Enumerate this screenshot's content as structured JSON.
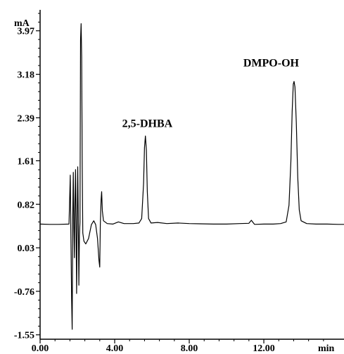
{
  "chart_data": {
    "type": "line",
    "y_unit": "mA",
    "x_unit": "min",
    "xlim": [
      0,
      16.3
    ],
    "ylim": [
      -1.63,
      4.35
    ],
    "x_ticks": [
      {
        "value": 0,
        "label": "0.00"
      },
      {
        "value": 4,
        "label": "4.00"
      },
      {
        "value": 8,
        "label": "8.00"
      },
      {
        "value": 12,
        "label": "12.00"
      }
    ],
    "y_ticks": [
      {
        "value": -1.55,
        "label": "-1.55"
      },
      {
        "value": -0.76,
        "label": "-0.76"
      },
      {
        "value": 0.03,
        "label": "0.03"
      },
      {
        "value": 0.82,
        "label": "0.82"
      },
      {
        "value": 1.61,
        "label": "1.61"
      },
      {
        "value": 2.39,
        "label": "2.39"
      },
      {
        "value": 3.18,
        "label": "3.18"
      },
      {
        "value": 3.97,
        "label": "3.97"
      }
    ],
    "annotations": [
      {
        "text": "2,5-DHBA",
        "x": 4.4,
        "y": 2.22
      },
      {
        "text": "DMPO-OH",
        "x": 10.9,
        "y": 3.32
      }
    ],
    "series": [
      {
        "color": "#000000",
        "points": [
          [
            0.0,
            0.46
          ],
          [
            0.5,
            0.455
          ],
          [
            1.0,
            0.455
          ],
          [
            1.55,
            0.46
          ],
          [
            1.62,
            1.35
          ],
          [
            1.66,
            0.0
          ],
          [
            1.69,
            -0.9
          ],
          [
            1.72,
            -1.45
          ],
          [
            1.75,
            0.6
          ],
          [
            1.78,
            1.4
          ],
          [
            1.81,
            0.4
          ],
          [
            1.84,
            -0.15
          ],
          [
            1.87,
            0.9
          ],
          [
            1.9,
            1.45
          ],
          [
            1.93,
            0.3
          ],
          [
            1.96,
            -0.8
          ],
          [
            1.99,
            0.5
          ],
          [
            2.02,
            1.5
          ],
          [
            2.05,
            0.6
          ],
          [
            2.08,
            -0.65
          ],
          [
            2.11,
            0.25
          ],
          [
            2.14,
            0.5
          ],
          [
            2.17,
            3.8
          ],
          [
            2.2,
            4.1
          ],
          [
            2.23,
            3.5
          ],
          [
            2.26,
            1.5
          ],
          [
            2.29,
            0.3
          ],
          [
            2.35,
            0.15
          ],
          [
            2.45,
            0.1
          ],
          [
            2.6,
            0.2
          ],
          [
            2.75,
            0.45
          ],
          [
            2.88,
            0.52
          ],
          [
            2.98,
            0.45
          ],
          [
            3.08,
            0.2
          ],
          [
            3.16,
            -0.2
          ],
          [
            3.2,
            -0.32
          ],
          [
            3.23,
            0.45
          ],
          [
            3.27,
            0.9
          ],
          [
            3.3,
            1.05
          ],
          [
            3.34,
            0.7
          ],
          [
            3.4,
            0.52
          ],
          [
            3.6,
            0.47
          ],
          [
            3.9,
            0.46
          ],
          [
            4.2,
            0.5
          ],
          [
            4.5,
            0.47
          ],
          [
            5.0,
            0.47
          ],
          [
            5.3,
            0.48
          ],
          [
            5.45,
            0.56
          ],
          [
            5.55,
            1.2
          ],
          [
            5.6,
            1.85
          ],
          [
            5.65,
            2.06
          ],
          [
            5.7,
            1.8
          ],
          [
            5.75,
            1.05
          ],
          [
            5.82,
            0.56
          ],
          [
            5.95,
            0.48
          ],
          [
            6.3,
            0.49
          ],
          [
            6.8,
            0.47
          ],
          [
            7.4,
            0.48
          ],
          [
            8.0,
            0.47
          ],
          [
            8.6,
            0.465
          ],
          [
            9.3,
            0.46
          ],
          [
            10.0,
            0.46
          ],
          [
            10.7,
            0.47
          ],
          [
            11.2,
            0.475
          ],
          [
            11.33,
            0.53
          ],
          [
            11.42,
            0.49
          ],
          [
            11.5,
            0.455
          ],
          [
            12.0,
            0.46
          ],
          [
            12.5,
            0.46
          ],
          [
            12.9,
            0.47
          ],
          [
            13.2,
            0.5
          ],
          [
            13.35,
            0.8
          ],
          [
            13.45,
            1.6
          ],
          [
            13.52,
            2.5
          ],
          [
            13.58,
            3.0
          ],
          [
            13.62,
            3.05
          ],
          [
            13.67,
            2.95
          ],
          [
            13.74,
            2.3
          ],
          [
            13.82,
            1.3
          ],
          [
            13.9,
            0.72
          ],
          [
            14.0,
            0.52
          ],
          [
            14.3,
            0.47
          ],
          [
            14.8,
            0.46
          ],
          [
            15.4,
            0.46
          ],
          [
            16.0,
            0.455
          ],
          [
            16.3,
            0.455
          ]
        ]
      }
    ]
  }
}
